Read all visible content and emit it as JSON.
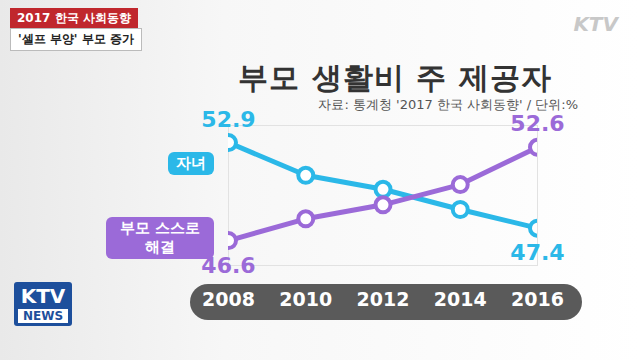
{
  "tags": [
    "2017 한국 사회동향",
    "'셀프 부양' 부모 증가"
  ],
  "branding": {
    "top": "KTV",
    "bottom": [
      "KTV",
      "NEWS"
    ]
  },
  "chart_data": {
    "type": "line",
    "title": "부모 생활비 주 제공자",
    "subtitle": "자료: 통계청 '2017 한국 사회동향' / 단위:%",
    "x": [
      2008,
      2010,
      2012,
      2014,
      2016
    ],
    "xlim": [
      2008,
      2016
    ],
    "xticks": [
      2008,
      2010,
      2012,
      2014,
      2016
    ],
    "ylim": [
      45,
      54
    ],
    "yticks": [],
    "tick_labels": "x",
    "data_labels": true,
    "marker": "circle",
    "series": [
      {
        "name": "자녀",
        "color": "#2bb8e8",
        "values": [
          52.9,
          50.8,
          49.9,
          48.6,
          47.4
        ],
        "value_labels": [
          "52.9",
          null,
          null,
          null,
          "47.4"
        ]
      },
      {
        "name": "부모 스스로 해결",
        "color": "#9b6ad8",
        "values": [
          46.6,
          48.0,
          48.9,
          50.2,
          52.6
        ],
        "value_labels": [
          "46.6",
          null,
          null,
          null,
          "52.6"
        ]
      }
    ]
  }
}
